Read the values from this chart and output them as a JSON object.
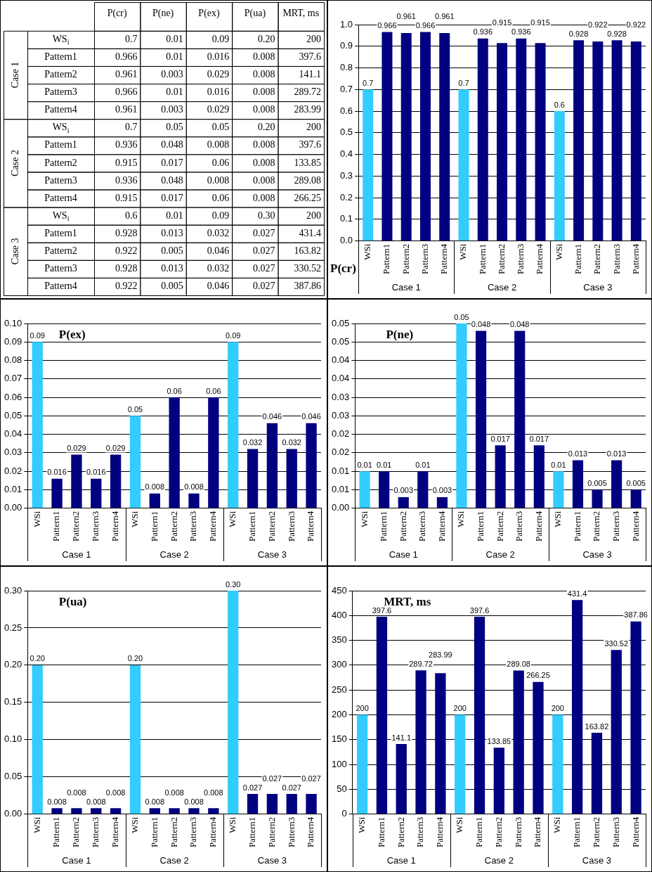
{
  "chart_data": [
    {
      "type": "heatmap",
      "categories": [
        "P(cr)",
        "P(ne)",
        "P(ex)",
        "P(ua)",
        "MRT, ms"
      ],
      "y_categories": [
        "WS$_{i}$",
        "Pattern1",
        "Pattern2",
        "Pattern3",
        "Pattern4",
        "WS$_{i}$",
        "Pattern1",
        "Pattern2",
        "Pattern3",
        "Pattern4",
        "WS$_{i}$",
        "Pattern1",
        "Pattern2",
        "Pattern3",
        "Pattern4"
      ],
      "cells": [
        [
          0.7,
          0.01,
          0.09,
          0.2,
          200
        ],
        [
          0.966,
          0.01,
          0.016,
          0.008,
          397.6
        ],
        [
          0.961,
          0.003,
          0.029,
          0.008,
          141.1
        ],
        [
          0.966,
          0.01,
          0.016,
          0.008,
          289.72
        ],
        [
          0.961,
          0.003,
          0.029,
          0.008,
          283.99
        ],
        [
          0.7,
          0.05,
          0.05,
          0.2,
          200
        ],
        [
          0.936,
          0.048,
          0.008,
          0.008,
          397.6
        ],
        [
          0.915,
          0.017,
          0.06,
          0.008,
          133.85
        ],
        [
          0.936,
          0.048,
          0.008,
          0.008,
          289.08
        ],
        [
          0.915,
          0.017,
          0.06,
          0.008,
          266.25
        ],
        [
          0.6,
          0.01,
          0.09,
          0.3,
          200
        ],
        [
          0.928,
          0.013,
          0.032,
          0.027,
          431.4
        ],
        [
          0.922,
          0.005,
          0.046,
          0.027,
          163.82
        ],
        [
          0.928,
          0.013,
          0.032,
          0.027,
          330.52
        ],
        [
          0.922,
          0.005,
          0.046,
          0.027,
          387.86
        ]
      ],
      "cell_labels": [
        [
          "0.7",
          "0.01",
          "0.09",
          "0.20",
          "200"
        ],
        [
          "0.966",
          "0.01",
          "0.016",
          "0.008",
          "397.6"
        ],
        [
          "0.961",
          "0.003",
          "0.029",
          "0.008",
          "141.1"
        ],
        [
          "0.966",
          "0.01",
          "0.016",
          "0.008",
          "289.72"
        ],
        [
          "0.961",
          "0.003",
          "0.029",
          "0.008",
          "283.99"
        ],
        [
          "0.7",
          "0.05",
          "0.05",
          "0.20",
          "200"
        ],
        [
          "0.936",
          "0.048",
          "0.008",
          "0.008",
          "397.6"
        ],
        [
          "0.915",
          "0.017",
          "0.06",
          "0.008",
          "133.85"
        ],
        [
          "0.936",
          "0.048",
          "0.008",
          "0.008",
          "289.08"
        ],
        [
          "0.915",
          "0.017",
          "0.06",
          "0.008",
          "266.25"
        ],
        [
          "0.6",
          "0.01",
          "0.09",
          "0.30",
          "200"
        ],
        [
          "0.928",
          "0.013",
          "0.032",
          "0.027",
          "431.4"
        ],
        [
          "0.922",
          "0.005",
          "0.046",
          "0.027",
          "163.82"
        ],
        [
          "0.928",
          "0.013",
          "0.032",
          "0.027",
          "330.52"
        ],
        [
          "0.922",
          "0.005",
          "0.046",
          "0.027",
          "387.86"
        ]
      ],
      "annotations": [
        "Case 1",
        "Case 2",
        "Case 3"
      ]
    },
    {
      "type": "bar",
      "title": "P(cr)",
      "categories": [
        "WSi",
        "Pattern1",
        "Pattern2",
        "Pattern3",
        "Pattern4",
        "WSi",
        "Pattern1",
        "Pattern2",
        "Pattern3",
        "Pattern4",
        "WSi",
        "Pattern1",
        "Pattern2",
        "Pattern3",
        "Pattern4"
      ],
      "values": [
        0.7,
        0.966,
        0.961,
        0.966,
        0.961,
        0.7,
        0.936,
        0.915,
        0.936,
        0.915,
        0.6,
        0.928,
        0.922,
        0.928,
        0.922
      ],
      "colors": [
        "#33ccff",
        "#000080",
        "#000080",
        "#000080",
        "#000080",
        "#33ccff",
        "#000080",
        "#000080",
        "#000080",
        "#000080",
        "#33ccff",
        "#000080",
        "#000080",
        "#000080",
        "#000080"
      ],
      "ylim": [
        0,
        1
      ],
      "yticks": [
        {
          "value": 0,
          "label": "0.0"
        },
        {
          "value": 0.1,
          "label": "0.1"
        },
        {
          "value": 0.2,
          "label": "0.2"
        },
        {
          "value": 0.3,
          "label": "0.3"
        },
        {
          "value": 0.4,
          "label": "0.4"
        },
        {
          "value": 0.5,
          "label": "0.5"
        },
        {
          "value": 0.6,
          "label": "0.6"
        },
        {
          "value": 0.7,
          "label": "0.7"
        },
        {
          "value": 0.8,
          "label": "0.8"
        },
        {
          "value": 0.9,
          "label": "0.9"
        },
        {
          "value": 1,
          "label": "1.0"
        }
      ],
      "grid": "y",
      "data_labels": true,
      "annotations": [
        "Case 1",
        "Case 2",
        "Case 3"
      ]
    },
    {
      "type": "bar",
      "title": "P(ex)",
      "categories": [
        "WSi",
        "Pattern1",
        "Pattern2",
        "Pattern3",
        "Pattern4",
        "WSi",
        "Pattern1",
        "Pattern2",
        "Pattern3",
        "Pattern4",
        "WSi",
        "Pattern1",
        "Pattern2",
        "Pattern3",
        "Pattern4"
      ],
      "values": [
        0.09,
        0.016,
        0.029,
        0.016,
        0.029,
        0.05,
        0.008,
        0.06,
        0.008,
        0.06,
        0.09,
        0.032,
        0.046,
        0.032,
        0.046
      ],
      "colors": [
        "#33ccff",
        "#000080",
        "#000080",
        "#000080",
        "#000080",
        "#33ccff",
        "#000080",
        "#000080",
        "#000080",
        "#000080",
        "#33ccff",
        "#000080",
        "#000080",
        "#000080",
        "#000080"
      ],
      "ylim": [
        0,
        0.1
      ],
      "yticks": [
        {
          "value": 0,
          "label": "0.00"
        },
        {
          "value": 0.01,
          "label": "0.01"
        },
        {
          "value": 0.02,
          "label": "0.02"
        },
        {
          "value": 0.03,
          "label": "0.03"
        },
        {
          "value": 0.04,
          "label": "0.04"
        },
        {
          "value": 0.05,
          "label": "0.05"
        },
        {
          "value": 0.06,
          "label": "0.06"
        },
        {
          "value": 0.07,
          "label": "0.07"
        },
        {
          "value": 0.08,
          "label": "0.08"
        },
        {
          "value": 0.09,
          "label": "0.09"
        },
        {
          "value": 0.1,
          "label": "0.10"
        }
      ],
      "grid": "y",
      "data_labels": true,
      "annotations": [
        "Case 1",
        "Case 2",
        "Case 3"
      ]
    },
    {
      "type": "bar",
      "title": "P(ne)",
      "categories": [
        "WSi",
        "Pattern1",
        "Pattern2",
        "Pattern3",
        "Pattern4",
        "WSi",
        "Pattern1",
        "Pattern2",
        "Pattern3",
        "Pattern4",
        "WSi",
        "Pattern1",
        "Pattern2",
        "Pattern3",
        "Pattern4"
      ],
      "values": [
        0.01,
        0.01,
        0.003,
        0.01,
        0.003,
        0.05,
        0.048,
        0.017,
        0.048,
        0.017,
        0.01,
        0.013,
        0.005,
        0.013,
        0.005
      ],
      "colors": [
        "#33ccff",
        "#000080",
        "#000080",
        "#000080",
        "#000080",
        "#33ccff",
        "#000080",
        "#000080",
        "#000080",
        "#000080",
        "#33ccff",
        "#000080",
        "#000080",
        "#000080",
        "#000080"
      ],
      "ylim": [
        0,
        0.05
      ],
      "yticks": [
        {
          "value": 0,
          "label": "0.00"
        },
        {
          "value": 0.005,
          "label": "0.01"
        },
        {
          "value": 0.01,
          "label": "0.01"
        },
        {
          "value": 0.015,
          "label": "0.02"
        },
        {
          "value": 0.02,
          "label": "0.02"
        },
        {
          "value": 0.025,
          "label": "0.03"
        },
        {
          "value": 0.03,
          "label": "0.03"
        },
        {
          "value": 0.035,
          "label": "0.04"
        },
        {
          "value": 0.04,
          "label": "0.04"
        },
        {
          "value": 0.045,
          "label": "0.05"
        },
        {
          "value": 0.05,
          "label": "0.05"
        }
      ],
      "grid": "y",
      "data_labels": true,
      "annotations": [
        "Case 1",
        "Case 2",
        "Case 3"
      ]
    },
    {
      "type": "bar",
      "title": "P(ua)",
      "categories": [
        "WSi",
        "Pattern1",
        "Pattern2",
        "Pattern3",
        "Pattern4",
        "WSi",
        "Pattern1",
        "Pattern2",
        "Pattern3",
        "Pattern4",
        "WSi",
        "Pattern1",
        "Pattern2",
        "Pattern3",
        "Pattern4"
      ],
      "values": [
        0.2,
        0.008,
        0.008,
        0.008,
        0.008,
        0.2,
        0.008,
        0.008,
        0.008,
        0.008,
        0.3,
        0.027,
        0.027,
        0.027,
        0.027
      ],
      "value_labels": [
        "0.20",
        "0.008",
        "0.008",
        "0.008",
        "0.008",
        "0.20",
        "0.008",
        "0.008",
        "0.008",
        "0.008",
        "0.30",
        "0.027",
        "0.027",
        "0.027",
        "0.027"
      ],
      "colors": [
        "#33ccff",
        "#000080",
        "#000080",
        "#000080",
        "#000080",
        "#33ccff",
        "#000080",
        "#000080",
        "#000080",
        "#000080",
        "#33ccff",
        "#000080",
        "#000080",
        "#000080",
        "#000080"
      ],
      "ylim": [
        0,
        0.3
      ],
      "yticks": [
        {
          "value": 0,
          "label": "0.00"
        },
        {
          "value": 0.05,
          "label": "0.05"
        },
        {
          "value": 0.1,
          "label": "0.10"
        },
        {
          "value": 0.15,
          "label": "0.15"
        },
        {
          "value": 0.2,
          "label": "0.20"
        },
        {
          "value": 0.25,
          "label": "0.25"
        },
        {
          "value": 0.3,
          "label": "0.30"
        }
      ],
      "grid": "y",
      "annotations": [
        "Case 1",
        "Case 2",
        "Case 3"
      ]
    },
    {
      "type": "bar",
      "title": "MRT, ms",
      "categories": [
        "WSi",
        "Pattern1",
        "Pattern2",
        "Pattern3",
        "Pattern4",
        "WSi",
        "Pattern1",
        "Pattern2",
        "Pattern3",
        "Pattern4",
        "WSi",
        "Pattern1",
        "Pattern2",
        "Pattern3",
        "Pattern4"
      ],
      "values": [
        200,
        397.6,
        141.1,
        289.72,
        283.99,
        200,
        397.6,
        133.85,
        289.08,
        266.25,
        200,
        431.4,
        163.82,
        330.52,
        387.86
      ],
      "colors": [
        "#33ccff",
        "#000080",
        "#000080",
        "#000080",
        "#000080",
        "#33ccff",
        "#000080",
        "#000080",
        "#000080",
        "#000080",
        "#33ccff",
        "#000080",
        "#000080",
        "#000080",
        "#000080"
      ],
      "ylim": [
        0,
        450
      ],
      "yticks": [
        0,
        50,
        100,
        150,
        200,
        250,
        300,
        350,
        400,
        450
      ],
      "grid": "y",
      "data_labels": true,
      "annotations": [
        "Case 1",
        "Case 2",
        "Case 3"
      ]
    }
  ]
}
